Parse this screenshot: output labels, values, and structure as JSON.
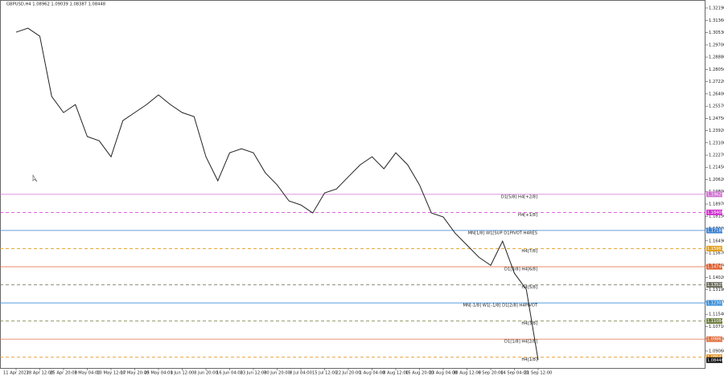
{
  "chart_data": {
    "type": "line",
    "title": "GBPUSD,H4  1.08962 1.09039 1.08387 1.08448",
    "categories": [
      "11 Apr 2022",
      null,
      "18 Apr 12:00",
      null,
      "25 Apr 20:00",
      null,
      "3 May 04:00",
      null,
      "10 May 12:00",
      null,
      "17 May 20:00",
      null,
      "25 May 04:00",
      null,
      "1 Jun 12:00",
      null,
      "8 Jun 20:00",
      null,
      "16 Jun 04:00",
      null,
      "23 Jun 12:00",
      null,
      "30 Jun 20:00",
      null,
      "8 Jul 04:00",
      null,
      "15 Jul 12:00",
      null,
      "22 Jul 20:00",
      null,
      "1 Aug 04:00",
      null,
      "8 Aug 12:00",
      null,
      "15 Aug 20:00",
      null,
      "23 Aug 04:00",
      null,
      "30 Aug 12:00",
      null,
      "6 Sep 20:00",
      null,
      "14 Sep 04:00",
      null,
      "21 Sep 12:00"
    ],
    "series": [
      {
        "name": "GBPUSD",
        "color": "#222222",
        "values": [
          1.3056,
          1.3083,
          1.3029,
          1.2623,
          1.2514,
          1.2568,
          1.2352,
          1.2324,
          1.2216,
          1.246,
          1.2514,
          1.2568,
          1.2633,
          1.2568,
          1.2514,
          1.2487,
          1.2216,
          1.2054,
          1.2243,
          1.227,
          1.2243,
          1.2108,
          1.2026,
          1.1918,
          1.1891,
          1.1837,
          1.1972,
          1.1999,
          1.2081,
          1.2162,
          1.2216,
          1.2135,
          1.2243,
          1.2162,
          1.2026,
          1.1837,
          1.181,
          1.1701,
          1.162,
          1.1539,
          1.1484,
          1.1647,
          1.143,
          1.1322,
          1.0845
        ]
      }
    ],
    "ylim": [
      1.0792,
      1.3273
    ],
    "yticks": [
      {
        "value": 1.3219,
        "label": "1.32190"
      },
      {
        "value": 1.3136,
        "label": "1.31360"
      },
      {
        "value": 1.3053,
        "label": "1.30530"
      },
      {
        "value": 1.297,
        "label": "1.29700"
      },
      {
        "value": 1.2888,
        "label": "1.28880"
      },
      {
        "value": 1.2805,
        "label": "1.28050"
      },
      {
        "value": 1.2722,
        "label": "1.27220"
      },
      {
        "value": 1.264,
        "label": "1.26400"
      },
      {
        "value": 1.2557,
        "label": "1.25570"
      },
      {
        "value": 1.2475,
        "label": "1.24750"
      },
      {
        "value": 1.2392,
        "label": "1.23920"
      },
      {
        "value": 1.231,
        "label": "1.23100"
      },
      {
        "value": 1.2227,
        "label": "1.22270"
      },
      {
        "value": 1.2145,
        "label": "1.21450"
      },
      {
        "value": 1.2062,
        "label": "1.20620"
      },
      {
        "value": 1.198,
        "label": "1.19800"
      },
      {
        "value": 1.1897,
        "label": "1.18970"
      },
      {
        "value": 1.1815,
        "label": "1.18150"
      },
      {
        "value": 1.1732,
        "label": "1.17320"
      },
      {
        "value": 1.1649,
        "label": "1.16490"
      },
      {
        "value": 1.1567,
        "label": "1.15670"
      },
      {
        "value": 1.1484,
        "label": "1.14840"
      },
      {
        "value": 1.1402,
        "label": "1.14020"
      },
      {
        "value": 1.1319,
        "label": "1.13190"
      },
      {
        "value": 1.1237,
        "label": "1.12370"
      },
      {
        "value": 1.1154,
        "label": "1.11540"
      },
      {
        "value": 1.1071,
        "label": "1.10710"
      },
      {
        "value": 1.0988,
        "label": "1.09880"
      },
      {
        "value": 1.0906,
        "label": "1.09060"
      }
    ],
    "levels": [
      {
        "label": "D1[5/8] H4[+2/8]",
        "value": 1.19629,
        "color": "#d070d0",
        "dashed": false
      },
      {
        "label": "H4[+1/8]",
        "value": 1.18408,
        "color": "#d030d0",
        "dashed": true
      },
      {
        "label": "MN[1/8] W1[SUP D1PIVOT H4RES",
        "value": 1.17188,
        "color": "#3a7fd0",
        "dashed": false
      },
      {
        "label": "H4[7/8]",
        "value": 1.15967,
        "color": "#e0a020",
        "dashed": true
      },
      {
        "label": "D1[3/8] H4[6/8]",
        "value": 1.14746,
        "color": "#e06030",
        "dashed": false
      },
      {
        "label": "H4[5/8]",
        "value": 1.13525,
        "color": "#707060",
        "dashed": true
      },
      {
        "label": "MN[-1/8] W1[-1/8] D1[2/8] H4PIVOT",
        "value": 1.12305,
        "color": "#3a8fd8",
        "dashed": false
      },
      {
        "label": "H4[3/8]",
        "value": 1.11084,
        "color": "#708040",
        "dashed": true
      },
      {
        "label": "D1[1/8] H4[2/8]",
        "value": 1.09863,
        "color": "#e07040",
        "dashed": false
      },
      {
        "label": "H4[1/8]",
        "value": 1.08643,
        "color": "#e09020",
        "dashed": true
      }
    ],
    "last_price": 1.08448
  }
}
